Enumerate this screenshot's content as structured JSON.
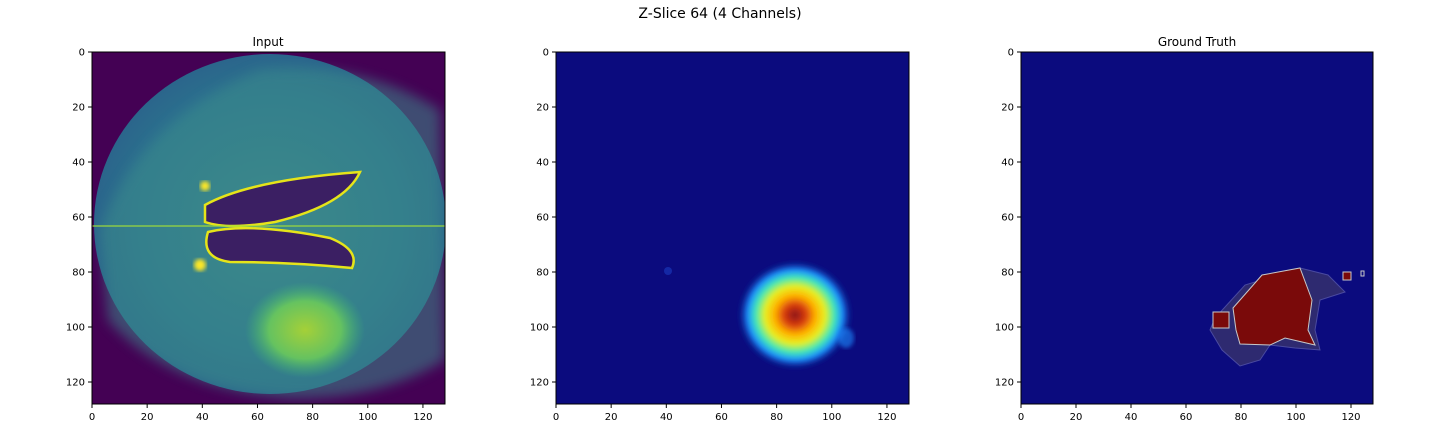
{
  "figure": {
    "suptitle": "Z-Slice 64 (4 Channels)"
  },
  "chart_data": [
    {
      "type": "heatmap",
      "title": "Input",
      "colormap": "viridis",
      "xlim": [
        0,
        128
      ],
      "ylim": [
        128,
        0
      ],
      "xticks": [
        "0",
        "20",
        "40",
        "60",
        "80",
        "100",
        "120"
      ],
      "yticks": [
        "0",
        "20",
        "40",
        "60",
        "80",
        "100",
        "120"
      ],
      "content": "axial brain MRI slice with lateral ventricles and bright lesion region near (85, 100)"
    },
    {
      "type": "heatmap",
      "title": "",
      "colormap": "jet",
      "xlim": [
        0,
        128
      ],
      "ylim": [
        128,
        0
      ],
      "xticks": [
        "0",
        "20",
        "40",
        "60",
        "80",
        "100",
        "120"
      ],
      "yticks": [
        "0",
        "20",
        "40",
        "60",
        "80",
        "100",
        "120"
      ],
      "hotspot": {
        "x": 85,
        "y": 95,
        "peak_color": "#a01818"
      }
    },
    {
      "type": "heatmap",
      "title": "Ground Truth",
      "colormap": "jet",
      "xlim": [
        0,
        128
      ],
      "ylim": [
        128,
        0
      ],
      "xticks": [
        "0",
        "20",
        "40",
        "60",
        "80",
        "100",
        "120"
      ],
      "yticks": [
        "0",
        "20",
        "40",
        "60",
        "80",
        "100",
        "120"
      ],
      "mask_regions": [
        {
          "label": "core",
          "color": "#7a0a0a"
        },
        {
          "label": "edema",
          "color": "#2e2a70"
        }
      ]
    }
  ],
  "colors": {
    "viridis_low": "#440154",
    "jet_low": "#0b0b7e",
    "viridis_high": "#fde725"
  }
}
